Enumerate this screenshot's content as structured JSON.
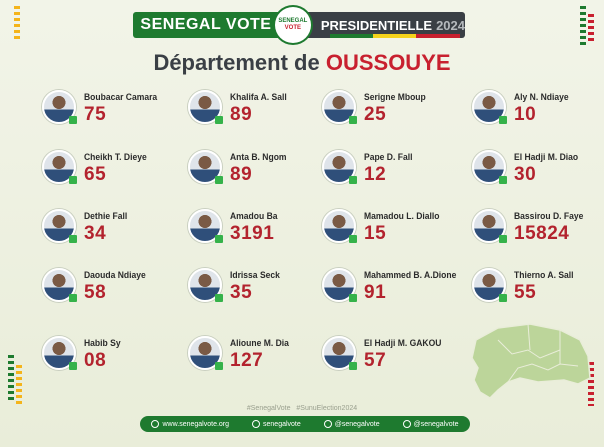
{
  "header": {
    "brand": "SENEGAL VOTE",
    "seal_line1": "SENEGAL",
    "seal_line2": "VOTE",
    "election": "PRESIDENTIELLE",
    "year": "2024"
  },
  "title": {
    "prefix": "Département de",
    "department": "OUSSOUYE"
  },
  "candidates": [
    {
      "name": "Boubacar Camara",
      "votes": "75"
    },
    {
      "name": "Cheikh T. Dieye",
      "votes": "65"
    },
    {
      "name": "Dethie Fall",
      "votes": "34"
    },
    {
      "name": "Daouda Ndiaye",
      "votes": "58"
    },
    {
      "name": "Habib Sy",
      "votes": "08"
    },
    {
      "name": "Khalifa A. Sall",
      "votes": "89"
    },
    {
      "name": "Anta B. Ngom",
      "votes": "89"
    },
    {
      "name": "Amadou Ba",
      "votes": "3191"
    },
    {
      "name": "Idrissa Seck",
      "votes": "35"
    },
    {
      "name": "Alioune M. Dia",
      "votes": "127"
    },
    {
      "name": "Serigne Mboup",
      "votes": "25"
    },
    {
      "name": "Pape D. Fall",
      "votes": "12"
    },
    {
      "name": "Mamadou L. Diallo",
      "votes": "15"
    },
    {
      "name": "Mahammed B. A.Dione",
      "votes": "91"
    },
    {
      "name": "El Hadji M. GAKOU",
      "votes": "57"
    },
    {
      "name": "Aly N. Ndiaye",
      "votes": "10"
    },
    {
      "name": "El Hadji M. Diao",
      "votes": "30"
    },
    {
      "name": "Bassirou D. Faye",
      "votes": "15824"
    },
    {
      "name": "Thierno A. Sall",
      "votes": "55"
    }
  ],
  "hashtags": "#SenegalVote #SunuElection2024",
  "footer": {
    "website": "www.senegalvote.org",
    "facebook": "senegalvote",
    "twitter": "@senegalvote",
    "instagram": "@senegalvote"
  },
  "colors": {
    "brand_green": "#1e7a2f",
    "accent_red": "#c8202f",
    "dark": "#3a3f45",
    "vote_red": "#b3232e"
  }
}
